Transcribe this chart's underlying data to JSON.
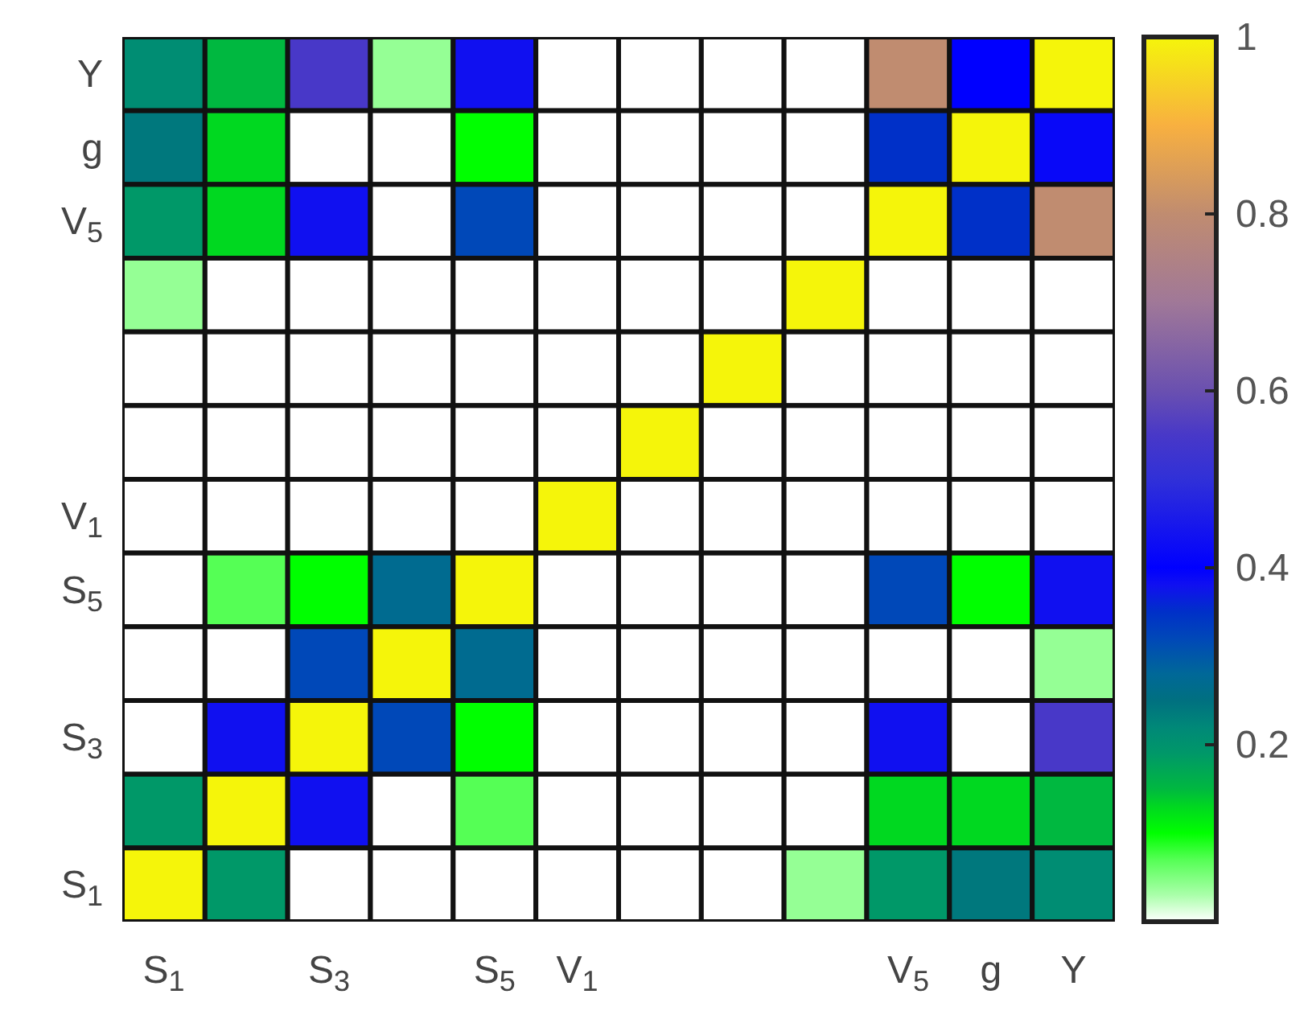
{
  "chart_data": {
    "type": "heatmap",
    "categories": [
      "S$_{1}$",
      null,
      "S$_{3}$",
      null,
      "S$_{5}$",
      "V$_{1}$",
      null,
      null,
      null,
      "V$_{5}$",
      "g",
      "Y"
    ],
    "y_categories": [
      "Y",
      "g",
      "V$_{5}$",
      null,
      null,
      null,
      "V$_{1}$",
      "S$_{5}$",
      null,
      "S$_{3}$",
      null,
      "S$_{1}$"
    ],
    "cells": [
      [
        0.21,
        0.15,
        0.55,
        0.04,
        0.38,
        0,
        0,
        0,
        0,
        0.8,
        0.4,
        1
      ],
      [
        0.24,
        0.13,
        0,
        0,
        0.1,
        0,
        0,
        0,
        0,
        0.35,
        1,
        0.39
      ],
      [
        0.19,
        0.13,
        0.38,
        0,
        0.32,
        0,
        0,
        0,
        0,
        1,
        0.35,
        0.8
      ],
      [
        0.04,
        0,
        0,
        0,
        0,
        0,
        0,
        0,
        1,
        0,
        0,
        0
      ],
      [
        0,
        0,
        0,
        0,
        0,
        0,
        0,
        1,
        0,
        0,
        0,
        0
      ],
      [
        0,
        0,
        0,
        0,
        0,
        0,
        1,
        0,
        0,
        0,
        0,
        0
      ],
      [
        0,
        0,
        0,
        0,
        0,
        1,
        0,
        0,
        0,
        0,
        0,
        0
      ],
      [
        0,
        0.07,
        0.1,
        0.27,
        1,
        0,
        0,
        0,
        0,
        0.32,
        0.1,
        0.38
      ],
      [
        0,
        0,
        0.32,
        1,
        0.27,
        0,
        0,
        0,
        0,
        0,
        0,
        0.04
      ],
      [
        0,
        0.38,
        1,
        0.32,
        0.1,
        0,
        0,
        0,
        0,
        0.38,
        0,
        0.55
      ],
      [
        0.19,
        1,
        0.38,
        0,
        0.07,
        0,
        0,
        0,
        0,
        0.13,
        0.13,
        0.15
      ],
      [
        1,
        0.19,
        0,
        0,
        0,
        0,
        0,
        0,
        0.04,
        0.19,
        0.24,
        0.21
      ]
    ],
    "clim": [
      0,
      1
    ],
    "cticks": [
      0.2,
      0.4,
      0.6,
      0.8,
      1
    ]
  }
}
